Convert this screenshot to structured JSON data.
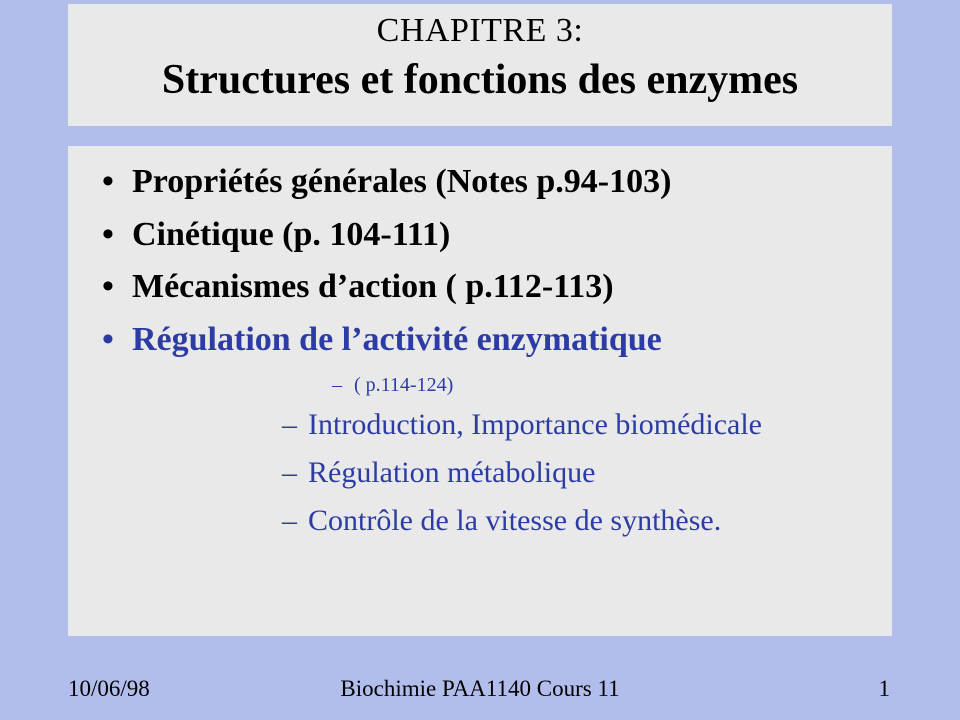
{
  "colors": {
    "slide_bg": "#b1bdeb",
    "box_bg": "#e9e9ea",
    "text_black": "#000000",
    "text_blue": "#2c3ca4"
  },
  "title": {
    "line1": "CHAPITRE 3:",
    "line2": "Structures et fonctions des enzymes",
    "line1_fontsize": 34,
    "line2_fontsize": 42
  },
  "bullets": {
    "item1": "Propriétés générales (Notes p.94-103)",
    "item2": "Cinétique (p. 104-111)",
    "item3": "Mécanismes d’action ( p.112-113)",
    "item4": "Régulation de l’activité enzymatique",
    "sub_small": "( p.114-124)",
    "sub1": "Introduction, Importance biomédicale",
    "sub2": "Régulation métabolique",
    "sub3": "Contrôle de la vitesse de synthèse.",
    "level1_fontsize": 34,
    "level2_fontsize": 30,
    "small_fontsize": 20
  },
  "footer": {
    "date": "10/06/98",
    "center": "Biochimie PAA1140 Cours 11",
    "page": "1",
    "fontsize": 23
  }
}
